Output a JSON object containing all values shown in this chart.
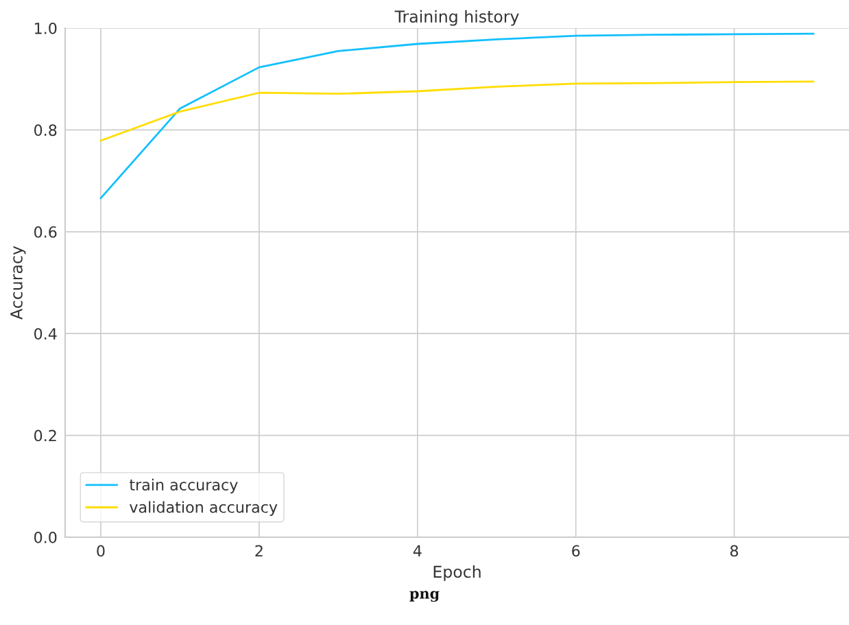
{
  "chart_data": {
    "type": "line",
    "title": "Training history",
    "xlabel": "Epoch",
    "ylabel": "Accuracy",
    "x": [
      0,
      1,
      2,
      3,
      4,
      5,
      6,
      7,
      8,
      9
    ],
    "series": [
      {
        "name": "train accuracy",
        "color": "#12bfff",
        "values": [
          0.666,
          0.842,
          0.923,
          0.955,
          0.969,
          0.978,
          0.985,
          0.987,
          0.988,
          0.989
        ]
      },
      {
        "name": "validation accuracy",
        "color": "#ffdd00",
        "values": [
          0.779,
          0.836,
          0.873,
          0.871,
          0.876,
          0.885,
          0.891,
          0.892,
          0.894,
          0.895
        ]
      }
    ],
    "xlim": [
      -0.45,
      9.45
    ],
    "xticks": [
      0,
      2,
      4,
      6,
      8
    ],
    "ylim": [
      0,
      1
    ],
    "yticks": [
      {
        "value": 0,
        "label": "0.0"
      },
      {
        "value": 0.2,
        "label": "0.2"
      },
      {
        "value": 0.4,
        "label": "0.4"
      },
      {
        "value": 0.6,
        "label": "0.6"
      },
      {
        "value": 0.8,
        "label": "0.8"
      },
      {
        "value": 1.0,
        "label": "1.0"
      }
    ],
    "grid": true,
    "legend": "lower left",
    "marker": "none",
    "line_style": "solid",
    "annotations": [
      "png"
    ]
  }
}
